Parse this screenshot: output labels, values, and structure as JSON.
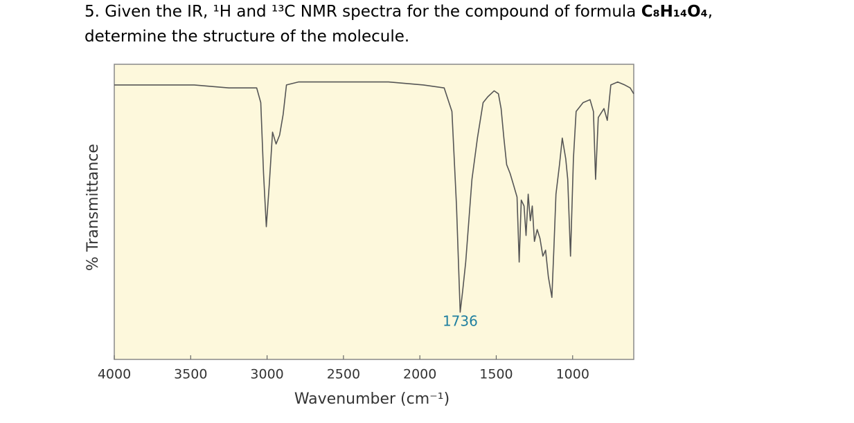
{
  "question": {
    "lead": "5. Given the IR, ¹H and ¹³C NMR spectra for the compound of formula ",
    "formula": "C₈H₁₄O₄",
    "tail": ",",
    "line2": "determine the structure of the molecule."
  },
  "chart_data": {
    "type": "line",
    "xlabel": "Wavenumber (cm⁻¹)",
    "ylabel": "% Transmittance",
    "annotation": {
      "text": "1736",
      "x": 1736
    },
    "xlim": [
      4000,
      600
    ],
    "ylim": [
      0,
      100
    ],
    "xticks": [
      4000,
      3500,
      3000,
      2500,
      2000,
      1500,
      1000
    ],
    "background": "#fdf8dc",
    "annotation_color": "#1f7fa0",
    "series": [
      {
        "color": "#555555",
        "x": [
          4000,
          3841,
          3659,
          3477,
          3250,
          3068,
          3041,
          3023,
          3005,
          2986,
          2964,
          2941,
          2918,
          2895,
          2873,
          2795,
          2477,
          2205,
          1977,
          1841,
          1790,
          1760,
          1736,
          1720,
          1700,
          1659,
          1623,
          1586,
          1555,
          1514,
          1486,
          1468,
          1450,
          1432,
          1409,
          1386,
          1364,
          1350,
          1336,
          1318,
          1305,
          1291,
          1277,
          1264,
          1250,
          1232,
          1214,
          1195,
          1177,
          1159,
          1136,
          1123,
          1109,
          1086,
          1068,
          1045,
          1032,
          1014,
          995,
          977,
          932,
          886,
          864,
          850,
          832,
          795,
          773,
          750,
          705,
          659,
          623,
          600
        ],
        "values": [
          93,
          93,
          93,
          93,
          92,
          92,
          87,
          63,
          45,
          59,
          77,
          73,
          76,
          83,
          93,
          94,
          94,
          94,
          93,
          92,
          84,
          52,
          16,
          23,
          33,
          61,
          75,
          87,
          89,
          91,
          90,
          85,
          75,
          66,
          63,
          59,
          55,
          33,
          54,
          52,
          42,
          56,
          47,
          52,
          40,
          44,
          41,
          35,
          37,
          28,
          21,
          37,
          56,
          66,
          75,
          68,
          61,
          35,
          68,
          84,
          87,
          88,
          84,
          61,
          82,
          85,
          81,
          93,
          94,
          93,
          92,
          90
        ]
      }
    ]
  }
}
